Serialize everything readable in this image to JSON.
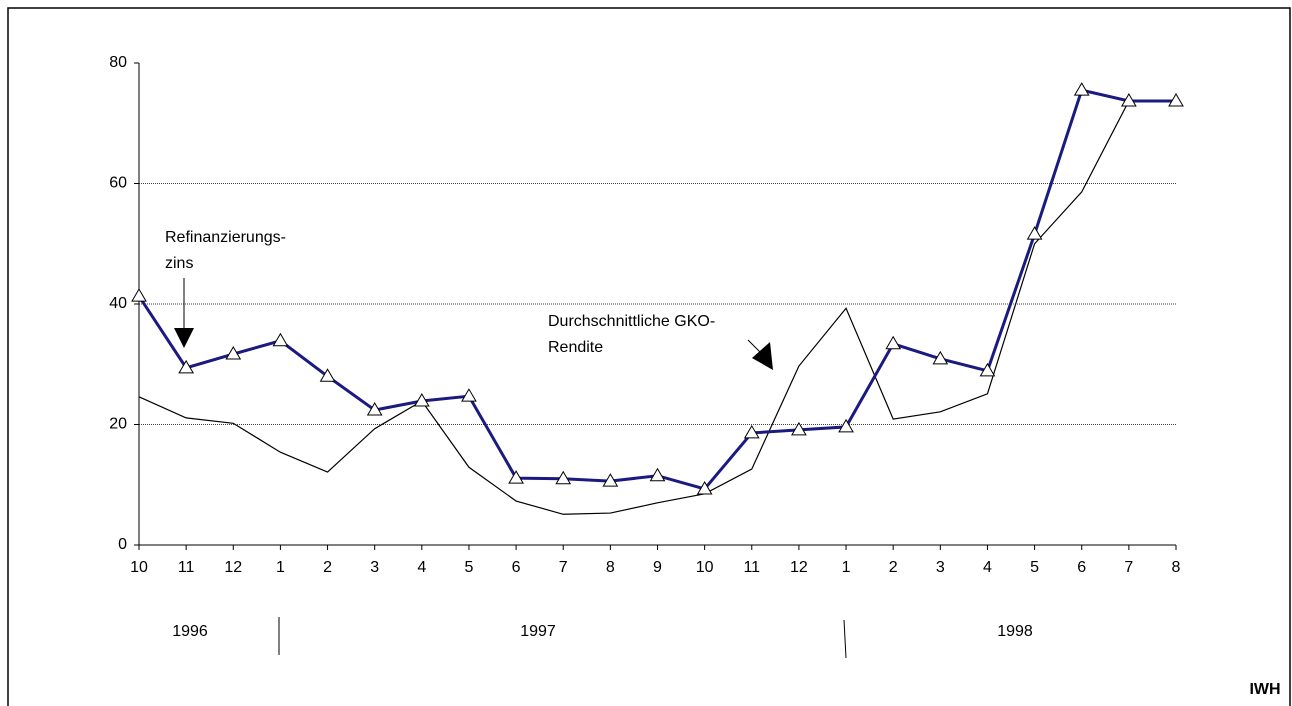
{
  "chart_data": {
    "type": "line",
    "categories": [
      "10",
      "11",
      "12",
      "1",
      "2",
      "3",
      "4",
      "5",
      "6",
      "7",
      "8",
      "9",
      "10",
      "11",
      "12",
      "1",
      "2",
      "3",
      "4",
      "5",
      "6",
      "7",
      "8"
    ],
    "years": [
      "1996",
      "1997",
      "1998"
    ],
    "series": [
      {
        "color": "#1a1a80",
        "marker": "triangle",
        "values": [
          41.3,
          29.4,
          31.7,
          33.9,
          28.0,
          22.4,
          23.9,
          24.7,
          11.1,
          11.0,
          10.6,
          11.5,
          9.3,
          18.6,
          19.1,
          19.6,
          33.4,
          30.9,
          28.9,
          51.6,
          75.5,
          73.7,
          73.7
        ]
      },
      {
        "color": "#000000",
        "values": [
          24.6,
          21.1,
          20.2,
          15.4,
          12.1,
          19.3,
          23.9,
          12.9,
          7.3,
          5.1,
          5.3,
          7.0,
          8.5,
          12.6,
          29.7,
          39.3,
          20.9,
          22.1,
          25.1,
          50.0,
          58.6,
          73.7,
          73.7
        ]
      }
    ],
    "annotations": [
      [
        "Refinanzierungs-",
        "zins"
      ],
      [
        "Durchschnittliche GKO-",
        "Rendite"
      ]
    ],
    "source": "IWH",
    "ylim": [
      0,
      80
    ],
    "yticks": [
      0,
      20,
      40,
      60,
      80
    ],
    "grid": true
  }
}
